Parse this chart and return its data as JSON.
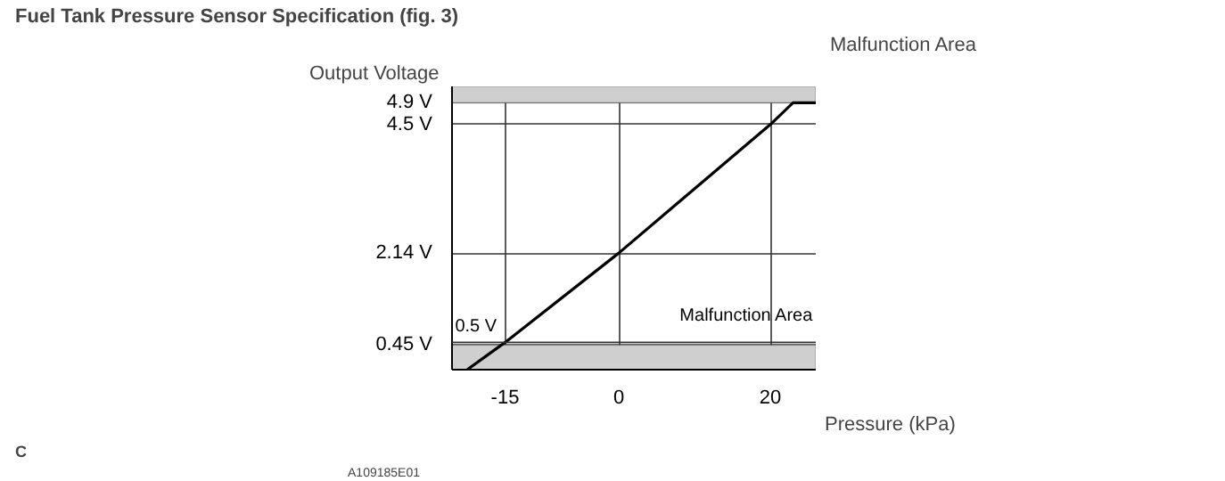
{
  "chart_data": {
    "type": "line",
    "title": "Fuel Tank Pressure Sensor Specification (fig. 3)",
    "xlabel": "Pressure (kPa)",
    "ylabel": "Output Voltage",
    "x": [
      -20,
      -15,
      0,
      20,
      23,
      26
    ],
    "series": [
      {
        "color": "#000000",
        "values": [
          0,
          0.5,
          2.14,
          4.5,
          4.9,
          4.9
        ]
      }
    ],
    "xlim": [
      -22,
      26
    ],
    "xticks": [
      -15,
      0,
      20
    ],
    "ylim": [
      0,
      5.2
    ],
    "yticks": [
      {
        "value": 4.9,
        "label": "4.9 V"
      },
      {
        "value": 4.5,
        "label": "4.5 V"
      },
      {
        "value": 2.14,
        "label": "2.14 V"
      },
      {
        "value": 0.45,
        "label": "0.45 V"
      }
    ],
    "ref_lines": [
      {
        "axis": "y",
        "value": 0.5,
        "label": "0.5 V"
      }
    ],
    "bands": [
      {
        "axis": "y",
        "from": 4.9,
        "to": 5.2,
        "label": "Malfunction Area",
        "color": "#cfcfcf"
      },
      {
        "axis": "y",
        "from": 0,
        "to": 0.45,
        "label": "Malfunction Area",
        "color": "#cfcfcf"
      }
    ],
    "annotations": [
      "C",
      "A109185E01"
    ],
    "grid": true,
    "marker": "none",
    "line_style": "solid"
  }
}
